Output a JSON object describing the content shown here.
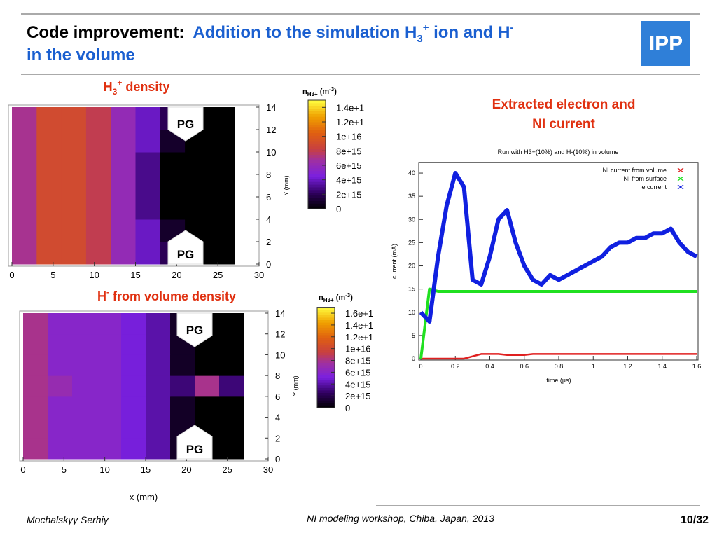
{
  "header": {
    "title_lead": "Code improvement:",
    "title_main": "Addition to the simulation H",
    "title_sub": "3",
    "title_sup": "+",
    "title_mid": " ion and H",
    "title_sup2": "-",
    "title_line2": "in the volume",
    "logo": "IPP"
  },
  "chart_data": [
    {
      "type": "heatmap",
      "title_parts": [
        "H",
        "3",
        "+",
        " density"
      ],
      "colorbar_title": [
        "n",
        "H3+",
        " (m",
        "-3",
        ")"
      ],
      "xlim": [
        0,
        30
      ],
      "xticks": [
        0,
        5,
        10,
        15,
        20,
        25,
        30
      ],
      "ylim": [
        0,
        14
      ],
      "yticks": [
        0,
        2,
        4,
        6,
        8,
        10,
        12,
        14
      ],
      "ylabel": "Y (mm)",
      "annotations": [
        "PG",
        "PG"
      ],
      "x_edges": [
        0,
        3,
        6,
        9,
        12,
        15,
        18,
        21,
        24,
        27
      ],
      "y_edges": [
        0,
        2,
        4,
        6,
        8,
        10,
        12,
        14
      ],
      "z": [
        [
          7000000000000000.0,
          9000000000000000.0,
          9000000000000000.0,
          8000000000000000.0,
          6000000000000000.0,
          4000000000000000.0,
          2000000000000000.0,
          0,
          0
        ],
        [
          7000000000000000.0,
          9000000000000000.0,
          9000000000000000.0,
          8000000000000000.0,
          6000000000000000.0,
          4000000000000000.0,
          1000000000000000.0,
          0,
          0
        ],
        [
          7000000000000000.0,
          9000000000000000.0,
          9000000000000000.0,
          8000000000000000.0,
          6000000000000000.0,
          3000000000000000.0,
          0,
          0,
          0
        ],
        [
          7000000000000000.0,
          9000000000000000.0,
          9000000000000000.0,
          8000000000000000.0,
          6000000000000000.0,
          3000000000000000.0,
          0,
          0,
          0
        ],
        [
          7000000000000000.0,
          9000000000000000.0,
          9000000000000000.0,
          8000000000000000.0,
          6000000000000000.0,
          3000000000000000.0,
          0,
          0,
          0
        ],
        [
          7000000000000000.0,
          9000000000000000.0,
          9000000000000000.0,
          8000000000000000.0,
          6000000000000000.0,
          4000000000000000.0,
          1000000000000000.0,
          0,
          0
        ],
        [
          7000000000000000.0,
          9000000000000000.0,
          9000000000000000.0,
          8000000000000000.0,
          6000000000000000.0,
          4000000000000000.0,
          2000000000000000.0,
          0,
          0
        ]
      ],
      "colorlim": [
        0,
        1.5e+16
      ],
      "colorticks": [
        {
          "value": 1.4e+16,
          "label": "1.4e+1"
        },
        {
          "value": 1.2e+16,
          "label": "1.2e+1"
        },
        {
          "value": 1e+16,
          "label": "1e+16"
        },
        {
          "value": 8000000000000000.0,
          "label": "8e+15"
        },
        {
          "value": 6000000000000000.0,
          "label": "6e+15"
        },
        {
          "value": 4000000000000000.0,
          "label": "4e+15"
        },
        {
          "value": 2000000000000000.0,
          "label": "2e+15"
        },
        0
      ]
    },
    {
      "type": "heatmap",
      "title_parts": [
        "H",
        "-",
        " from volume density"
      ],
      "colorbar_title": [
        "n",
        "H3+",
        " (m",
        "-3",
        ")"
      ],
      "xlim": [
        0,
        30
      ],
      "xticks": [
        0,
        5,
        10,
        15,
        20,
        25,
        30
      ],
      "ylim": [
        0,
        14
      ],
      "yticks": [
        0,
        2,
        4,
        6,
        8,
        10,
        12,
        14
      ],
      "ylabel": "Y (mm)",
      "xlabel": "x (mm)",
      "annotations": [
        "PG",
        "PG"
      ],
      "x_edges": [
        0,
        3,
        6,
        9,
        12,
        15,
        18,
        21,
        24,
        27
      ],
      "y_edges": [
        0,
        2,
        4,
        6,
        8,
        10,
        12,
        14
      ],
      "z": [
        [
          8000000000000000.0,
          6000000000000000.0,
          6000000000000000.0,
          6000000000000000.0,
          5000000000000000.0,
          4000000000000000.0,
          1000000000000000.0,
          0,
          0
        ],
        [
          8000000000000000.0,
          6000000000000000.0,
          6000000000000000.0,
          6000000000000000.0,
          5000000000000000.0,
          4000000000000000.0,
          1000000000000000.0,
          0,
          0
        ],
        [
          8000000000000000.0,
          6000000000000000.0,
          6000000000000000.0,
          6000000000000000.0,
          5000000000000000.0,
          4000000000000000.0,
          1000000000000000.0,
          0,
          0
        ],
        [
          8000000000000000.0,
          7000000000000000.0,
          6000000000000000.0,
          6000000000000000.0,
          5000000000000000.0,
          4000000000000000.0,
          3000000000000000.0,
          8000000000000000.0,
          3000000000000000.0
        ],
        [
          8000000000000000.0,
          6000000000000000.0,
          6000000000000000.0,
          6000000000000000.0,
          5000000000000000.0,
          4000000000000000.0,
          1000000000000000.0,
          0,
          0
        ],
        [
          8000000000000000.0,
          6000000000000000.0,
          6000000000000000.0,
          6000000000000000.0,
          5000000000000000.0,
          4000000000000000.0,
          1000000000000000.0,
          0,
          0
        ],
        [
          8000000000000000.0,
          6000000000000000.0,
          6000000000000000.0,
          6000000000000000.0,
          5000000000000000.0,
          4000000000000000.0,
          1000000000000000.0,
          0,
          0
        ]
      ],
      "colorlim": [
        0,
        1.7e+16
      ],
      "colorticks": [
        {
          "value": 1.6e+16,
          "label": "1.6e+1"
        },
        {
          "value": 1.4e+16,
          "label": "1.4e+1"
        },
        {
          "value": 1.2e+16,
          "label": "1.2e+1"
        },
        {
          "value": 1e+16,
          "label": "1e+16"
        },
        {
          "value": 8000000000000000.0,
          "label": "8e+15"
        },
        {
          "value": 6000000000000000.0,
          "label": "6e+15"
        },
        {
          "value": 4000000000000000.0,
          "label": "4e+15"
        },
        {
          "value": 2000000000000000.0,
          "label": "2e+15"
        },
        0
      ]
    },
    {
      "type": "line",
      "heading": [
        "Extracted electron and",
        "NI current"
      ],
      "title": "Run with H3+(10%) and H-(10%) in volume",
      "xlabel": "time (µs)",
      "ylabel": "current (mA)",
      "xlim": [
        0,
        1.6
      ],
      "xticks": [
        0,
        0.2,
        0.4,
        0.6,
        0.8,
        1,
        1.2,
        1.4,
        1.6
      ],
      "ylim": [
        0,
        42
      ],
      "yticks": [
        0,
        5,
        10,
        15,
        20,
        25,
        30,
        35,
        40
      ],
      "legend": "upper right",
      "x": [
        0,
        0.05,
        0.1,
        0.15,
        0.2,
        0.25,
        0.3,
        0.35,
        0.4,
        0.45,
        0.5,
        0.55,
        0.6,
        0.65,
        0.7,
        0.75,
        0.8,
        0.85,
        0.9,
        0.95,
        1,
        1.05,
        1.1,
        1.15,
        1.2,
        1.25,
        1.3,
        1.35,
        1.4,
        1.45,
        1.5,
        1.55,
        1.6
      ],
      "series": [
        {
          "name": "NI current from volume",
          "color": "#e02020",
          "values": [
            0,
            0,
            0,
            0,
            0,
            0,
            0.5,
            1,
            1,
            1,
            0.8,
            0.8,
            0.8,
            1,
            1,
            1,
            1,
            1,
            1,
            1,
            1,
            1,
            1,
            1,
            1,
            1,
            1,
            1,
            1,
            1,
            1,
            1,
            1
          ]
        },
        {
          "name": "NI from surface",
          "color": "#20e020",
          "values": [
            0,
            15,
            14.5,
            14.5,
            14.5,
            14.5,
            14.5,
            14.5,
            14.5,
            14.5,
            14.5,
            14.5,
            14.5,
            14.5,
            14.5,
            14.5,
            14.5,
            14.5,
            14.5,
            14.5,
            14.5,
            14.5,
            14.5,
            14.5,
            14.5,
            14.5,
            14.5,
            14.5,
            14.5,
            14.5,
            14.5,
            14.5,
            14.5
          ]
        },
        {
          "name": "e current",
          "color": "#1020e0",
          "values": [
            10,
            8,
            22,
            33,
            40,
            37,
            17,
            16,
            22,
            30,
            32,
            25,
            20,
            17,
            16,
            18,
            17,
            18,
            19,
            20,
            21,
            22,
            24,
            25,
            25,
            26,
            26,
            27,
            27,
            28,
            25,
            23,
            22
          ]
        }
      ]
    }
  ],
  "footer": {
    "author": "Mochalskyy Serhiy",
    "event": "NI modeling workshop,  Chiba, Japan, 2013",
    "page": "10/32"
  }
}
